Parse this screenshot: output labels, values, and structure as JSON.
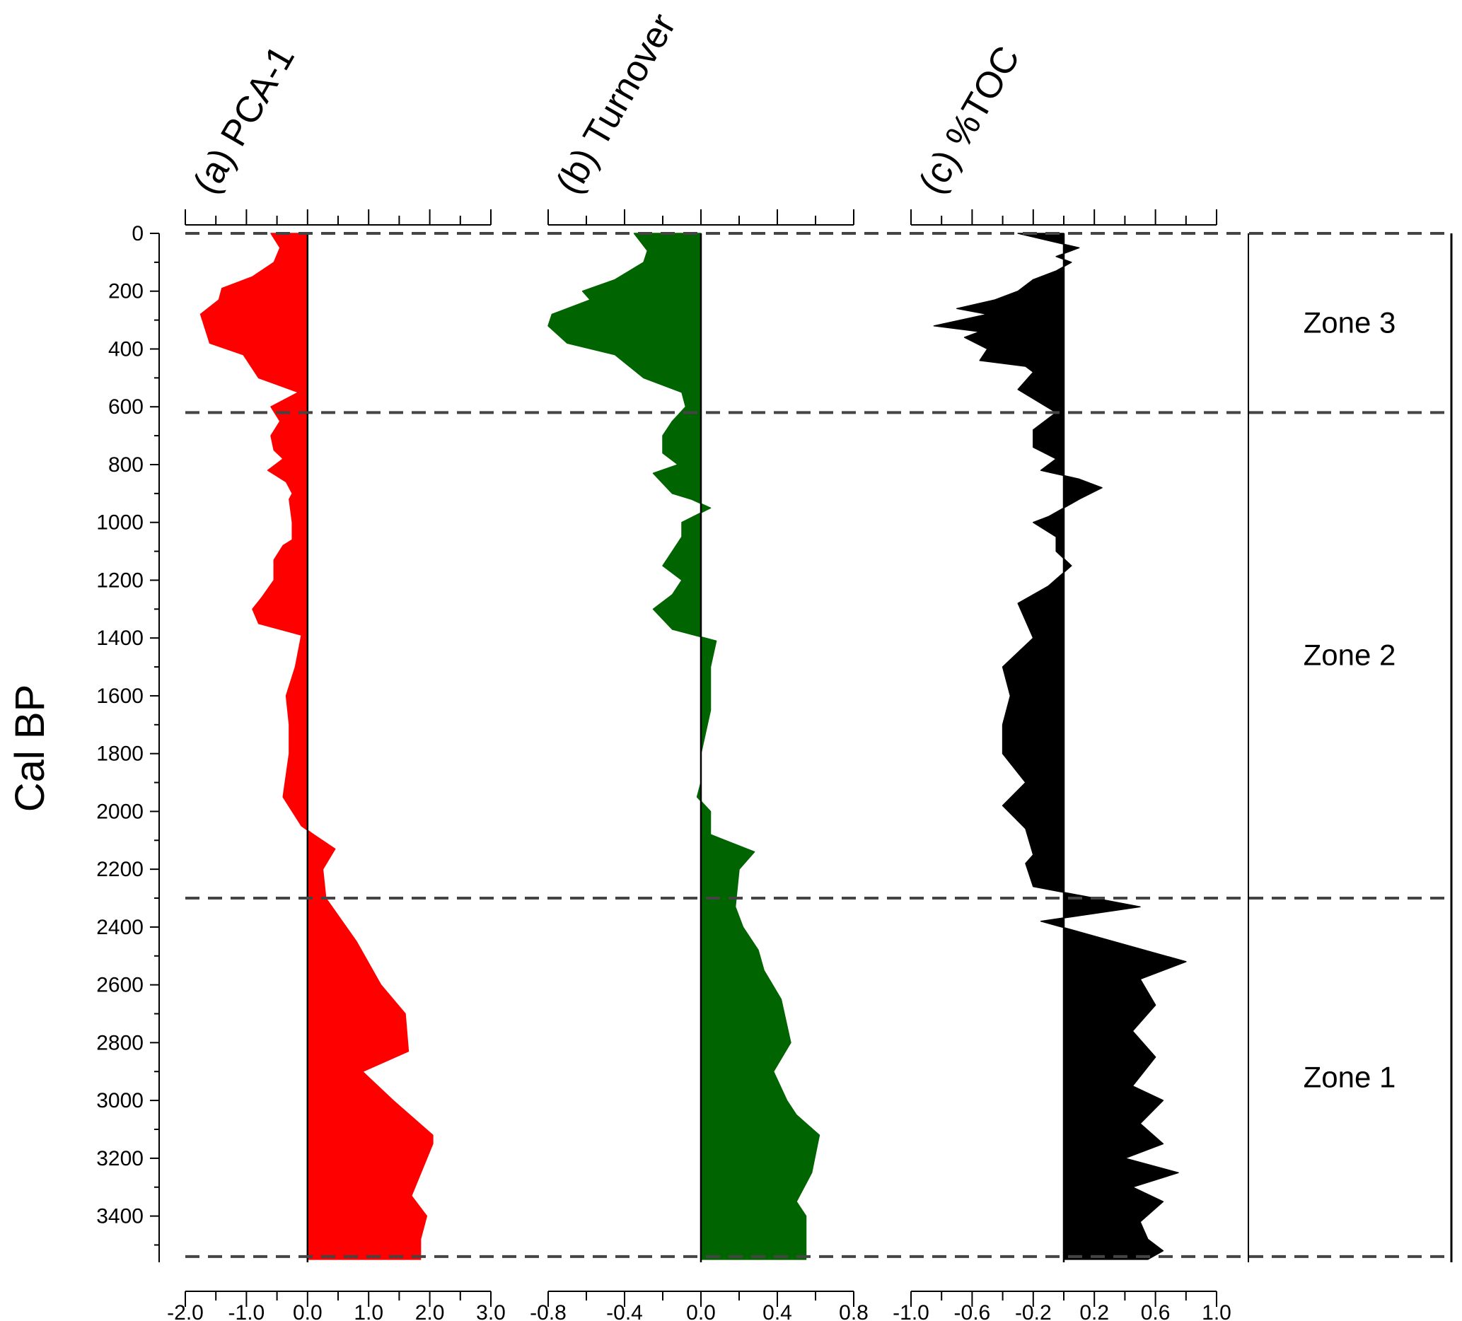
{
  "chart_data": {
    "type": "area",
    "ylabel": "Cal BP",
    "y_ticks": [
      0,
      200,
      400,
      600,
      800,
      1000,
      1200,
      1400,
      1600,
      1800,
      2000,
      2200,
      2400,
      2600,
      2800,
      3000,
      3200,
      3400
    ],
    "ylim": [
      0,
      3560
    ],
    "y_inverted": true,
    "zones": [
      {
        "label": "Zone 3",
        "top": 0,
        "bottom": 620
      },
      {
        "label": "Zone 2",
        "top": 620,
        "bottom": 2300
      },
      {
        "label": "Zone 1",
        "top": 2300,
        "bottom": 3540
      }
    ],
    "panels": [
      {
        "title": "(a) PCA-1",
        "color": "#ff0000",
        "xlim": [
          -2.0,
          3.0
        ],
        "x_tick_values": [
          -2.0,
          -1.0,
          0.0,
          1.0,
          2.0,
          3.0
        ],
        "x_tick_labels": [
          "-2.0",
          "-1.0",
          "0.0",
          "1.0",
          "2.0",
          "3.0"
        ],
        "baseline": 0.0,
        "points": [
          [
            -0.6,
            0
          ],
          [
            -0.45,
            50
          ],
          [
            -0.55,
            100
          ],
          [
            -0.9,
            150
          ],
          [
            -1.4,
            190
          ],
          [
            -1.45,
            230
          ],
          [
            -1.75,
            280
          ],
          [
            -1.6,
            380
          ],
          [
            -1.05,
            420
          ],
          [
            -0.8,
            500
          ],
          [
            -0.15,
            550
          ],
          [
            -0.6,
            600
          ],
          [
            -0.45,
            650
          ],
          [
            -0.6,
            700
          ],
          [
            -0.55,
            750
          ],
          [
            -0.4,
            780
          ],
          [
            -0.65,
            820
          ],
          [
            -0.35,
            860
          ],
          [
            -0.25,
            900
          ],
          [
            -0.3,
            920
          ],
          [
            -0.25,
            1000
          ],
          [
            -0.25,
            1060
          ],
          [
            -0.4,
            1080
          ],
          [
            -0.55,
            1130
          ],
          [
            -0.55,
            1200
          ],
          [
            -0.75,
            1260
          ],
          [
            -0.9,
            1300
          ],
          [
            -0.8,
            1350
          ],
          [
            -0.1,
            1390
          ],
          [
            -0.2,
            1500
          ],
          [
            -0.35,
            1600
          ],
          [
            -0.3,
            1700
          ],
          [
            -0.3,
            1800
          ],
          [
            -0.4,
            1950
          ],
          [
            -0.1,
            2050
          ],
          [
            0.1,
            2080
          ],
          [
            0.45,
            2130
          ],
          [
            0.25,
            2200
          ],
          [
            0.3,
            2300
          ],
          [
            0.8,
            2450
          ],
          [
            1.2,
            2600
          ],
          [
            1.6,
            2700
          ],
          [
            1.65,
            2830
          ],
          [
            0.9,
            2900
          ],
          [
            1.4,
            3000
          ],
          [
            2.05,
            3120
          ],
          [
            2.05,
            3150
          ],
          [
            1.7,
            3330
          ],
          [
            1.95,
            3400
          ],
          [
            1.85,
            3480
          ],
          [
            1.85,
            3550
          ]
        ]
      },
      {
        "title": "(b) Turnover",
        "color": "#006400",
        "xlim": [
          -0.8,
          0.8
        ],
        "x_tick_values": [
          -0.8,
          -0.4,
          0.0,
          0.4,
          0.8
        ],
        "x_tick_labels": [
          "-0.8",
          "-0.4",
          "0.0",
          "0.4",
          "0.8"
        ],
        "baseline": 0.0,
        "points": [
          [
            -0.35,
            0
          ],
          [
            -0.28,
            60
          ],
          [
            -0.3,
            100
          ],
          [
            -0.45,
            160
          ],
          [
            -0.62,
            200
          ],
          [
            -0.58,
            230
          ],
          [
            -0.78,
            280
          ],
          [
            -0.8,
            320
          ],
          [
            -0.7,
            380
          ],
          [
            -0.45,
            420
          ],
          [
            -0.3,
            500
          ],
          [
            -0.1,
            550
          ],
          [
            -0.08,
            600
          ],
          [
            -0.15,
            650
          ],
          [
            -0.2,
            700
          ],
          [
            -0.2,
            760
          ],
          [
            -0.12,
            800
          ],
          [
            -0.25,
            830
          ],
          [
            -0.15,
            900
          ],
          [
            -0.05,
            920
          ],
          [
            0.05,
            950
          ],
          [
            -0.1,
            1000
          ],
          [
            -0.1,
            1050
          ],
          [
            -0.15,
            1100
          ],
          [
            -0.2,
            1150
          ],
          [
            -0.1,
            1200
          ],
          [
            -0.15,
            1250
          ],
          [
            -0.25,
            1300
          ],
          [
            -0.15,
            1370
          ],
          [
            0.08,
            1410
          ],
          [
            0.05,
            1500
          ],
          [
            0.05,
            1650
          ],
          [
            0.0,
            1800
          ],
          [
            0.0,
            1900
          ],
          [
            -0.02,
            1950
          ],
          [
            0.05,
            2000
          ],
          [
            0.05,
            2080
          ],
          [
            0.28,
            2140
          ],
          [
            0.2,
            2200
          ],
          [
            0.18,
            2330
          ],
          [
            0.22,
            2400
          ],
          [
            0.3,
            2480
          ],
          [
            0.33,
            2550
          ],
          [
            0.42,
            2650
          ],
          [
            0.47,
            2800
          ],
          [
            0.38,
            2900
          ],
          [
            0.45,
            3000
          ],
          [
            0.5,
            3050
          ],
          [
            0.62,
            3120
          ],
          [
            0.58,
            3250
          ],
          [
            0.5,
            3350
          ],
          [
            0.55,
            3400
          ],
          [
            0.55,
            3550
          ]
        ]
      },
      {
        "title": "(c) %TOC",
        "color": "#000000",
        "xlim": [
          -1.0,
          1.0
        ],
        "x_tick_values": [
          -1.0,
          -0.6,
          -0.2,
          0.2,
          0.6,
          1.0
        ],
        "x_tick_labels": [
          "-1.0",
          "-0.6",
          "-0.2",
          "0.2",
          "0.6",
          "1.0"
        ],
        "baseline": 0.0,
        "points": [
          [
            -0.3,
            0
          ],
          [
            0.1,
            50
          ],
          [
            -0.05,
            80
          ],
          [
            0.05,
            100
          ],
          [
            -0.05,
            130
          ],
          [
            -0.2,
            160
          ],
          [
            -0.3,
            200
          ],
          [
            -0.45,
            230
          ],
          [
            -0.7,
            260
          ],
          [
            -0.5,
            280
          ],
          [
            -0.85,
            320
          ],
          [
            -0.55,
            340
          ],
          [
            -0.65,
            360
          ],
          [
            -0.5,
            400
          ],
          [
            -0.55,
            440
          ],
          [
            -0.25,
            460
          ],
          [
            -0.2,
            480
          ],
          [
            -0.3,
            540
          ],
          [
            -0.05,
            620
          ],
          [
            -0.2,
            680
          ],
          [
            -0.2,
            740
          ],
          [
            -0.05,
            780
          ],
          [
            -0.15,
            820
          ],
          [
            0.1,
            850
          ],
          [
            0.25,
            880
          ],
          [
            0.1,
            920
          ],
          [
            -0.1,
            980
          ],
          [
            -0.2,
            1000
          ],
          [
            -0.05,
            1050
          ],
          [
            -0.05,
            1100
          ],
          [
            0.05,
            1150
          ],
          [
            -0.1,
            1220
          ],
          [
            -0.3,
            1280
          ],
          [
            -0.2,
            1400
          ],
          [
            -0.4,
            1500
          ],
          [
            -0.35,
            1600
          ],
          [
            -0.4,
            1700
          ],
          [
            -0.4,
            1800
          ],
          [
            -0.25,
            1900
          ],
          [
            -0.4,
            1980
          ],
          [
            -0.25,
            2060
          ],
          [
            -0.2,
            2150
          ],
          [
            -0.25,
            2180
          ],
          [
            -0.2,
            2260
          ],
          [
            0.5,
            2330
          ],
          [
            -0.15,
            2380
          ],
          [
            0.8,
            2520
          ],
          [
            0.5,
            2580
          ],
          [
            0.6,
            2670
          ],
          [
            0.45,
            2760
          ],
          [
            0.6,
            2850
          ],
          [
            0.45,
            2950
          ],
          [
            0.65,
            3000
          ],
          [
            0.5,
            3080
          ],
          [
            0.65,
            3150
          ],
          [
            0.4,
            3200
          ],
          [
            0.75,
            3250
          ],
          [
            0.45,
            3300
          ],
          [
            0.65,
            3350
          ],
          [
            0.5,
            3420
          ],
          [
            0.55,
            3480
          ],
          [
            0.65,
            3520
          ],
          [
            0.55,
            3550
          ]
        ]
      }
    ]
  }
}
